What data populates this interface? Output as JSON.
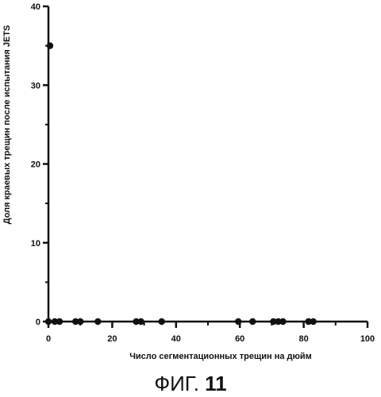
{
  "chart_data": {
    "type": "scatter",
    "title": "",
    "xlabel": "Число сегментационных трещин на дюйм",
    "ylabel": "Доля краевых трещин после испытания JETS",
    "xlim": [
      0,
      100
    ],
    "ylim": [
      0,
      40
    ],
    "x_ticks": [
      0,
      20,
      40,
      60,
      80,
      100
    ],
    "y_ticks": [
      0,
      10,
      20,
      30,
      40
    ],
    "grid": false,
    "points": [
      {
        "x": 0.5,
        "y": 35
      },
      {
        "x": 0,
        "y": 0
      },
      {
        "x": 2,
        "y": 0
      },
      {
        "x": 3.5,
        "y": 0
      },
      {
        "x": 8.5,
        "y": 0
      },
      {
        "x": 10,
        "y": 0
      },
      {
        "x": 15.5,
        "y": 0
      },
      {
        "x": 27.5,
        "y": 0
      },
      {
        "x": 29,
        "y": 0
      },
      {
        "x": 35.5,
        "y": 0
      },
      {
        "x": 59.5,
        "y": 0
      },
      {
        "x": 64,
        "y": 0
      },
      {
        "x": 70.5,
        "y": 0
      },
      {
        "x": 72,
        "y": 0
      },
      {
        "x": 73.5,
        "y": 0
      },
      {
        "x": 81.5,
        "y": 0
      },
      {
        "x": 83,
        "y": 0
      }
    ]
  },
  "caption": {
    "prefix": "ФИГ.",
    "number": "11"
  }
}
